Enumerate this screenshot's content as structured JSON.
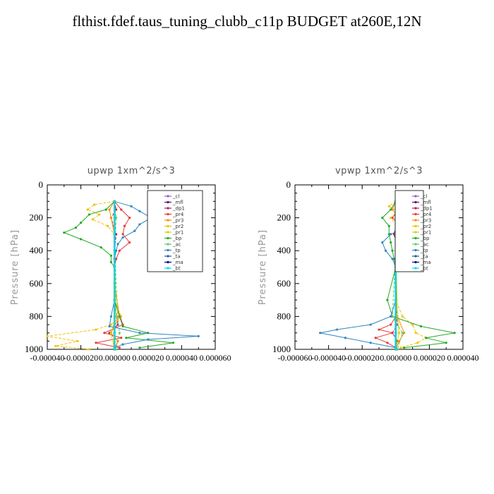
{
  "figure": {
    "title": "flthist.fdef.taus_tuning_clubb_c11p  BUDGET at260E,12N"
  },
  "chart_data": [
    {
      "type": "line",
      "title": "upwp   1xm^2/s^3",
      "ylabel": "Pressure [hPa]",
      "xlabel": "",
      "xlim": [
        -4e-05,
        6e-05
      ],
      "ylim": [
        1000,
        0
      ],
      "y_inverted": true,
      "xtick_labels": [
        "-0.000040",
        "-0.000020",
        "0.000000",
        "0.000020",
        "0.000040",
        "0.000060"
      ],
      "xtick_values": [
        -4e-05,
        -2e-05,
        0,
        2e-05,
        4e-05,
        6e-05
      ],
      "ytick_labels": [
        "0",
        "200",
        "400",
        "600",
        "800",
        "1000"
      ],
      "ytick_values": [
        0,
        200,
        400,
        600,
        800,
        1000
      ],
      "legend_placement": "top-right",
      "series": [
        {
          "name": "_cl",
          "color": "#9b59d0",
          "y": [
            100,
            300,
            500,
            700,
            900,
            1000
          ],
          "x": [
            0,
            0,
            0,
            0,
            0,
            0
          ]
        },
        {
          "name": "_mfl",
          "color": "#5a0f6e",
          "y": [
            100,
            300,
            500,
            700,
            900,
            1000
          ],
          "x": [
            0,
            0,
            0,
            0,
            0,
            0
          ]
        },
        {
          "name": "_dp1",
          "color": "#c2185b",
          "y": [
            100,
            150,
            200,
            300,
            400,
            500,
            700,
            850,
            900,
            950,
            1000
          ],
          "x": [
            0,
            1e-06,
            -2e-06,
            1e-06,
            0,
            0,
            0,
            2e-06,
            -3e-06,
            2e-06,
            0
          ]
        },
        {
          "name": "_pr4",
          "color": "#e53935",
          "y": [
            100,
            150,
            200,
            250,
            300,
            350,
            400,
            450,
            500,
            700,
            850,
            900,
            930,
            960,
            990
          ],
          "x": [
            0,
            4e-06,
            9e-06,
            6e-06,
            5e-06,
            9e-06,
            3e-06,
            1e-06,
            0,
            0,
            5e-06,
            -6e-06,
            4e-06,
            -1.1e-05,
            3e-06
          ]
        },
        {
          "name": "_pr3",
          "color": "#ff8c00",
          "y": [
            100,
            150,
            200,
            300,
            400,
            600,
            800,
            900,
            950,
            1000
          ],
          "x": [
            0,
            -3e-06,
            -2e-06,
            0,
            0,
            0,
            3e-06,
            -2e-06,
            2e-06,
            0
          ]
        },
        {
          "name": "_pr2",
          "color": "#f5c000",
          "y": [
            100,
            120,
            150,
            180,
            210,
            250,
            300,
            400,
            500,
            700,
            800,
            850,
            880,
            920,
            950,
            980,
            1000
          ],
          "x": [
            0,
            -1.2e-05,
            -1.6e-05,
            -9e-06,
            -1.3e-05,
            -4e-06,
            0,
            0,
            0,
            0,
            4e-06,
            -2e-06,
            -1.1e-05,
            -4e-05,
            -2.2e-05,
            -3.5e-05,
            -1.5e-05
          ]
        },
        {
          "name": "_pr1",
          "color": "#d4d400",
          "y": [
            100,
            200,
            400,
            800,
            900,
            1000
          ],
          "x": [
            0,
            0,
            0,
            1e-06,
            -2e-06,
            0
          ]
        },
        {
          "name": "_bp",
          "color": "#22aa22",
          "y": [
            100,
            150,
            180,
            230,
            260,
            290,
            330,
            380,
            430,
            470,
            500,
            700,
            800,
            860,
            900,
            930,
            960,
            990
          ],
          "x": [
            0,
            -5e-06,
            -1.5e-05,
            -2e-05,
            -2.3e-05,
            -3e-05,
            -2e-05,
            -8e-06,
            -2e-06,
            -2e-06,
            0,
            0,
            3e-06,
            5e-06,
            2e-05,
            7e-06,
            3.5e-05,
            1.5e-05
          ]
        },
        {
          "name": "_ac",
          "color": "#66cc66",
          "y": [
            100,
            200,
            400,
            800,
            900,
            1000
          ],
          "x": [
            0,
            1e-06,
            0,
            2e-06,
            3e-06,
            1e-06
          ]
        },
        {
          "name": "_tp",
          "color": "#2e86c1",
          "y": [
            100,
            130,
            160,
            200,
            240,
            280,
            320,
            360,
            400,
            450,
            500,
            700,
            800,
            860,
            900,
            920,
            940,
            970,
            990
          ],
          "x": [
            0,
            1e-05,
            1.5e-05,
            2.2e-05,
            1.5e-05,
            1.2e-05,
            5e-06,
            2e-06,
            1e-06,
            0,
            0,
            0,
            -2e-06,
            -3e-06,
            1.5e-05,
            5e-05,
            2e-05,
            5e-06,
            0
          ]
        },
        {
          "name": "_ta",
          "color": "#1f618d",
          "y": [
            100,
            300,
            500,
            700,
            900,
            1000
          ],
          "x": [
            0,
            0,
            0,
            0,
            0,
            0
          ]
        },
        {
          "name": "_ma",
          "color": "#000088",
          "y": [
            100,
            300,
            500,
            700,
            900,
            1000
          ],
          "x": [
            0,
            0,
            0,
            0,
            0,
            0
          ]
        },
        {
          "name": "_bt",
          "color": "#00e0e0",
          "y": [
            100,
            300,
            500,
            700,
            900,
            1000
          ],
          "x": [
            0,
            0,
            0,
            0,
            0,
            0
          ]
        }
      ]
    },
    {
      "type": "line",
      "title": "vpwp   1xm^2/s^3",
      "ylabel": "Pressure [hPa]",
      "xlabel": "",
      "xlim": [
        -6e-05,
        4e-05
      ],
      "ylim": [
        1000,
        0
      ],
      "y_inverted": true,
      "xtick_labels": [
        "-0.000060",
        "-0.000040",
        "-0.000020",
        "0.000000",
        "0.000020",
        "0.000040"
      ],
      "xtick_values": [
        -6e-05,
        -4e-05,
        -2e-05,
        0,
        2e-05,
        4e-05
      ],
      "ytick_labels": [
        "0",
        "200",
        "400",
        "600",
        "800",
        "1000"
      ],
      "ytick_values": [
        0,
        200,
        400,
        600,
        800,
        1000
      ],
      "legend_placement": "top-right",
      "series": [
        {
          "name": "_cl",
          "color": "#9b59d0",
          "y": [
            100,
            300,
            500,
            700,
            900,
            1000
          ],
          "x": [
            0,
            0,
            0,
            0,
            0,
            0
          ]
        },
        {
          "name": "_mfl",
          "color": "#5a0f6e",
          "y": [
            100,
            300,
            500,
            700,
            900,
            1000
          ],
          "x": [
            0,
            0,
            0,
            0,
            0,
            0
          ]
        },
        {
          "name": "_dp1",
          "color": "#c2185b",
          "y": [
            100,
            200,
            300,
            400,
            500,
            700,
            850,
            900,
            950,
            1000
          ],
          "x": [
            0,
            1e-06,
            -1e-06,
            1e-06,
            0,
            0,
            1e-06,
            -2e-06,
            1e-06,
            0
          ]
        },
        {
          "name": "_pr4",
          "color": "#e53935",
          "y": [
            100,
            150,
            200,
            250,
            300,
            350,
            400,
            500,
            700,
            800,
            850,
            880,
            900,
            930,
            960,
            990
          ],
          "x": [
            0,
            2e-06,
            -2e-06,
            3e-06,
            1e-06,
            2e-06,
            0,
            0,
            0,
            0,
            -3e-06,
            -1e-05,
            -2e-06,
            -1.2e-05,
            -5e-06,
            0
          ]
        },
        {
          "name": "_pr3",
          "color": "#ff8c00",
          "y": [
            100,
            150,
            200,
            300,
            500,
            800,
            900,
            950,
            1000
          ],
          "x": [
            0,
            -2e-06,
            2e-06,
            0,
            0,
            1e-06,
            5e-06,
            2e-06,
            0
          ]
        },
        {
          "name": "_pr2",
          "color": "#f5c000",
          "y": [
            100,
            130,
            160,
            200,
            250,
            300,
            400,
            500,
            700,
            800,
            850,
            900,
            930,
            960,
            990
          ],
          "x": [
            0,
            -4e-06,
            1e-06,
            -3e-06,
            1e-06,
            0,
            0,
            0,
            0,
            4e-06,
            1e-05,
            1.2e-05,
            1.8e-05,
            1.3e-05,
            3e-06
          ]
        },
        {
          "name": "_pr1",
          "color": "#d4d400",
          "y": [
            100,
            200,
            400,
            800,
            900,
            1000
          ],
          "x": [
            0,
            0,
            0,
            1e-06,
            2e-06,
            0
          ]
        },
        {
          "name": "_bp",
          "color": "#22aa22",
          "y": [
            100,
            150,
            200,
            250,
            300,
            350,
            400,
            450,
            500,
            700,
            800,
            860,
            900,
            930,
            960,
            990
          ],
          "x": [
            0,
            -3e-06,
            -8e-06,
            -4e-06,
            -4e-06,
            -3e-06,
            -2e-06,
            -1e-06,
            0,
            -5e-06,
            -2e-06,
            1.5e-05,
            3.5e-05,
            1.8e-05,
            3e-05,
            5e-06
          ]
        },
        {
          "name": "_ac",
          "color": "#66cc66",
          "y": [
            100,
            200,
            400,
            800,
            900,
            1000
          ],
          "x": [
            0,
            1e-06,
            0,
            -2e-06,
            4e-06,
            1e-06
          ]
        },
        {
          "name": "_tp",
          "color": "#2e86c1",
          "y": [
            100,
            150,
            200,
            260,
            300,
            350,
            400,
            450,
            500,
            700,
            800,
            850,
            880,
            900,
            930,
            960,
            990
          ],
          "x": [
            0,
            4e-06,
            2e-06,
            6e-06,
            -3e-06,
            -8e-06,
            -6e-06,
            -2e-06,
            0,
            0,
            -3e-06,
            -1.5e-05,
            -3.5e-05,
            -4.5e-05,
            -3e-05,
            -1.5e-05,
            0
          ]
        },
        {
          "name": "_ta",
          "color": "#1f618d",
          "y": [
            100,
            300,
            500,
            700,
            900,
            1000
          ],
          "x": [
            0,
            0,
            0,
            0,
            0,
            0
          ]
        },
        {
          "name": "_ma",
          "color": "#000088",
          "y": [
            100,
            300,
            500,
            700,
            900,
            1000
          ],
          "x": [
            0,
            0,
            0,
            0,
            0,
            0
          ]
        },
        {
          "name": "_bt",
          "color": "#00e0e0",
          "y": [
            100,
            300,
            500,
            700,
            900,
            1000
          ],
          "x": [
            0,
            0,
            0,
            0,
            0,
            0
          ]
        }
      ]
    }
  ]
}
